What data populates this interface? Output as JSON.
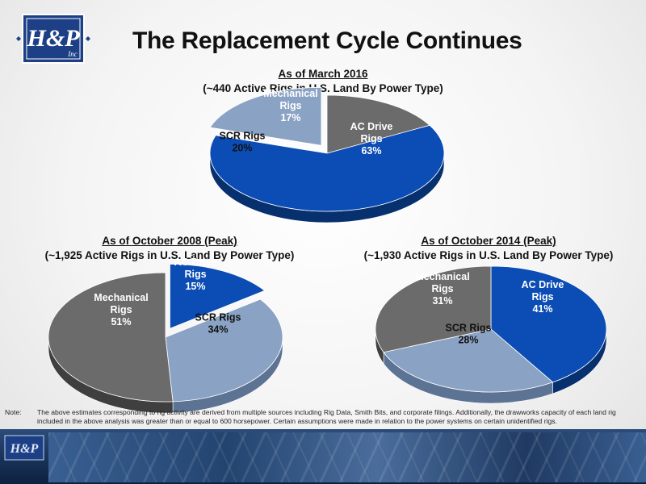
{
  "header": {
    "title": "The Replacement Cycle Continues",
    "logo_text": "H&P",
    "logo_sub": "Inc"
  },
  "colors": {
    "ac": "#0b4db4",
    "scr": "#8aa2c4",
    "mech": "#6b6b6b",
    "title": "#111111"
  },
  "chart_data": [
    {
      "type": "pie",
      "title": "As of March 2016",
      "subtitle": "(~440 Active Rigs in U.S. Land By Power Type)",
      "slices": [
        {
          "key": "ac",
          "name": "AC Drive Rigs",
          "label_lines": [
            "AC Drive",
            "Rigs",
            "63%"
          ],
          "value": 63
        },
        {
          "key": "scr",
          "name": "SCR Rigs",
          "label_lines": [
            "SCR Rigs",
            "20%"
          ],
          "value": 20
        },
        {
          "key": "mech",
          "name": "Mechanical Rigs",
          "label_lines": [
            "Mechanical",
            "Rigs",
            "17%"
          ],
          "value": 17
        }
      ]
    },
    {
      "type": "pie",
      "title": "As of October 2008 (Peak)",
      "subtitle": "(~1,925 Active Rigs in U.S. Land By Power Type)",
      "slices": [
        {
          "key": "ac",
          "name": "AC Drive Rigs",
          "label_lines": [
            "AC Drive",
            "Rigs",
            "15%"
          ],
          "value": 15
        },
        {
          "key": "scr",
          "name": "SCR Rigs",
          "label_lines": [
            "SCR Rigs",
            "34%"
          ],
          "value": 34
        },
        {
          "key": "mech",
          "name": "Mechanical Rigs",
          "label_lines": [
            "Mechanical",
            "Rigs",
            "51%"
          ],
          "value": 51
        }
      ]
    },
    {
      "type": "pie",
      "title": "As of October 2014 (Peak)",
      "subtitle": "(~1,930 Active Rigs in U.S. Land By Power Type)",
      "slices": [
        {
          "key": "ac",
          "name": "AC Drive Rigs",
          "label_lines": [
            "AC Drive",
            "Rigs",
            "41%"
          ],
          "value": 41
        },
        {
          "key": "scr",
          "name": "SCR Rigs",
          "label_lines": [
            "SCR Rigs",
            "28%"
          ],
          "value": 28
        },
        {
          "key": "mech",
          "name": "Mechanical Rigs",
          "label_lines": [
            "Mechanical",
            "Rigs",
            "31%"
          ],
          "value": 31
        }
      ]
    }
  ],
  "note": {
    "label": "Note:",
    "text": "The above estimates corresponding to rig activity are derived from multiple sources including Rig Data, Smith Bits, and corporate filings.  Additionally, the drawworks capacity of each land rig included in the above analysis was greater than or equal to 600 horsepower.  Certain assumptions were made in relation to the power systems on certain unidentified rigs."
  }
}
